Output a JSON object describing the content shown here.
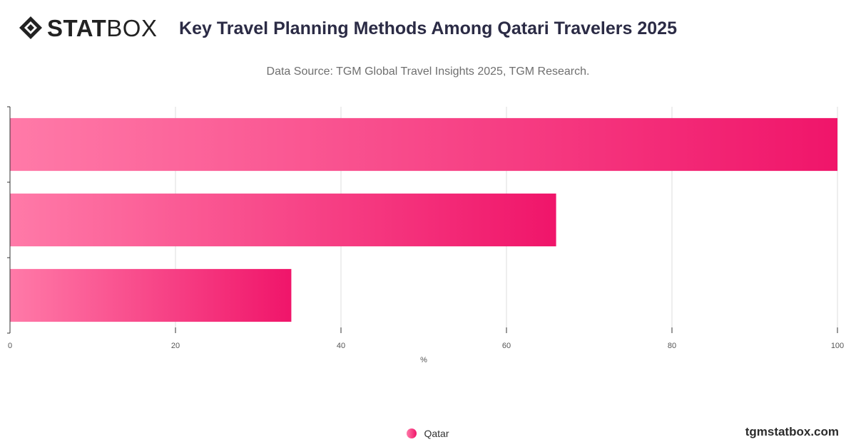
{
  "brand": {
    "logo_bold": "STAT",
    "logo_thin": "BOX",
    "website": "tgmstatbox.com"
  },
  "colors": {
    "bar_start": "#ff7aa8",
    "bar_end": "#f0156a",
    "grid": "#dddddd",
    "axis": "#333333"
  },
  "chart_data": {
    "type": "bar",
    "orientation": "horizontal",
    "title": "Key Travel Planning Methods Among Qatari Travelers 2025",
    "subtitle": "Data Source: TGM Global Travel Insights 2025, TGM Research.",
    "xlabel": "%",
    "ylabel": "",
    "xlim": [
      0,
      100
    ],
    "xticks": [
      0,
      20,
      40,
      60,
      80,
      100
    ],
    "grid": true,
    "legend_position": "bottom-center",
    "series": [
      {
        "name": "Qatar",
        "values": [
          100,
          66,
          34
        ]
      }
    ]
  }
}
